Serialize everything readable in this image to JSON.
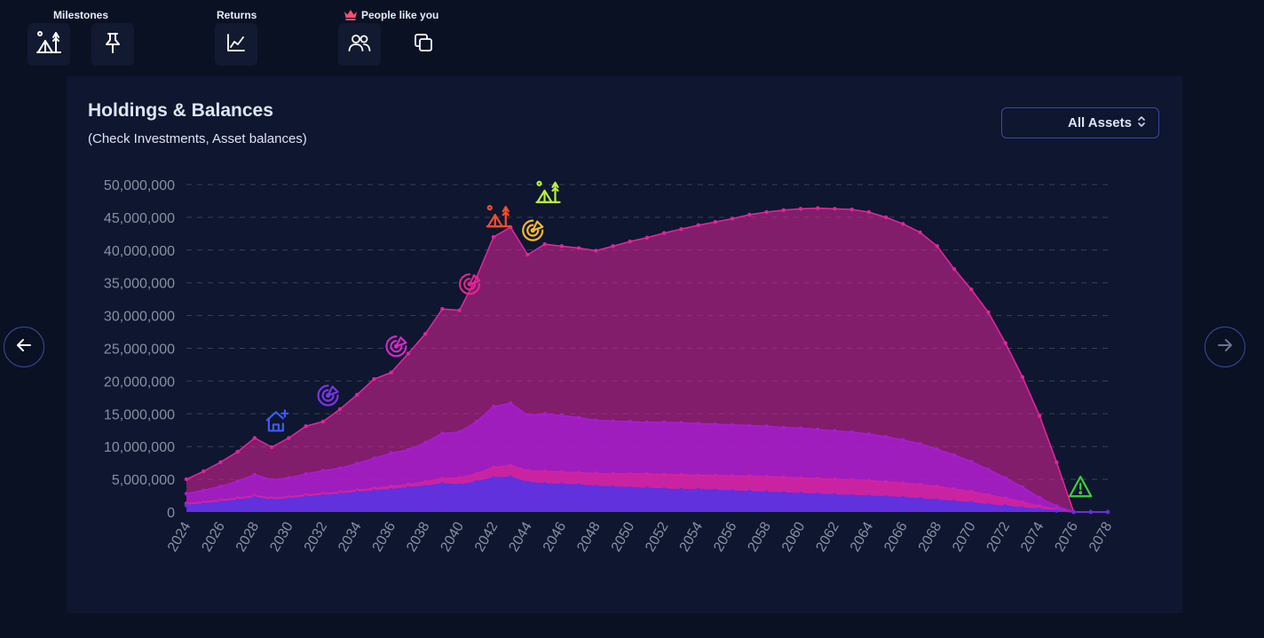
{
  "toolbar": {
    "groups": [
      {
        "label": "Milestones"
      },
      {
        "label": "Returns"
      },
      {
        "label": "People like you"
      }
    ],
    "buttons": [
      {
        "name": "milestone-camp-button",
        "icon": "camp-icon"
      },
      {
        "name": "milestone-pin-button",
        "icon": "pin-icon"
      },
      {
        "name": "returns-chart-button",
        "icon": "line-chart-icon"
      },
      {
        "name": "people-button",
        "icon": "users-icon"
      },
      {
        "name": "copy-button",
        "icon": "copy-icon"
      }
    ]
  },
  "card": {
    "title": "Holdings & Balances",
    "subtitle": "(Check Investments, Asset balances)",
    "asset_filter": {
      "selected": "All Assets"
    }
  },
  "colors": {
    "total": "#e0259a",
    "investments": "#a61ed1",
    "savings": "#d0249e",
    "cash": "#5b33e0",
    "gridline": "#3a4155",
    "ticklabel": "#8a90a0"
  },
  "chart_data": {
    "type": "area",
    "title": "",
    "xlabel": "",
    "ylabel": "",
    "ylim": [
      0,
      50000000
    ],
    "yticks": [
      0,
      5000000,
      10000000,
      15000000,
      20000000,
      25000000,
      30000000,
      35000000,
      40000000,
      45000000,
      50000000
    ],
    "ytick_labels": [
      "0",
      "5,000,000",
      "10,000,000",
      "15,000,000",
      "20,000,000",
      "25,000,000",
      "30,000,000",
      "35,000,000",
      "40,000,000",
      "45,000,000",
      "50,000,000"
    ],
    "xlim": [
      2024,
      2078
    ],
    "xtick_labels": [
      "2024",
      "2026",
      "2028",
      "2030",
      "2032",
      "2034",
      "2036",
      "2038",
      "2040",
      "2042",
      "2044",
      "2046",
      "2048",
      "2050",
      "2052",
      "2054",
      "2056",
      "2058",
      "2060",
      "2062",
      "2064",
      "2066",
      "2068",
      "2070",
      "2072",
      "2074",
      "2076",
      "2078"
    ],
    "grid": "horizontal-dashed",
    "series": [
      {
        "color": "#e0259a",
        "x": [
          2024,
          2025,
          2026,
          2027,
          2028,
          2029,
          2030,
          2031,
          2032,
          2033,
          2034,
          2035,
          2036,
          2037,
          2038,
          2039,
          2040,
          2041,
          2042,
          2043,
          2044,
          2045,
          2046,
          2047,
          2048,
          2049,
          2050,
          2051,
          2052,
          2053,
          2054,
          2055,
          2056,
          2057,
          2058,
          2059,
          2060,
          2061,
          2062,
          2063,
          2064,
          2065,
          2066,
          2067,
          2068,
          2069,
          2070,
          2071,
          2072,
          2073,
          2074,
          2075,
          2076,
          2077,
          2078
        ],
        "values": [
          5000000,
          6200000,
          7600000,
          9200000,
          11300000,
          9900000,
          11300000,
          13100000,
          13800000,
          15700000,
          17900000,
          20300000,
          21300000,
          24200000,
          27200000,
          31000000,
          30800000,
          35800000,
          42000000,
          43500000,
          39300000,
          40900000,
          40600000,
          40300000,
          39900000,
          40600000,
          41300000,
          41900000,
          42600000,
          43200000,
          43800000,
          44300000,
          44800000,
          45400000,
          45800000,
          46100000,
          46300000,
          46400000,
          46300000,
          46200000,
          45800000,
          45000000,
          44000000,
          42700000,
          40600000,
          37100000,
          34000000,
          30500000,
          25800000,
          20600000,
          14700000,
          7600000,
          0,
          0,
          0
        ]
      },
      {
        "color": "#a61ed1",
        "x": [
          2024,
          2025,
          2026,
          2027,
          2028,
          2029,
          2030,
          2031,
          2032,
          2033,
          2034,
          2035,
          2036,
          2037,
          2038,
          2039,
          2040,
          2041,
          2042,
          2043,
          2044,
          2045,
          2046,
          2047,
          2048,
          2049,
          2050,
          2051,
          2052,
          2053,
          2054,
          2055,
          2056,
          2057,
          2058,
          2059,
          2060,
          2061,
          2062,
          2063,
          2064,
          2065,
          2066,
          2067,
          2068,
          2069,
          2070,
          2071,
          2072,
          2073,
          2074,
          2075,
          2076,
          2077,
          2078
        ],
        "values": [
          2800000,
          3300000,
          3900000,
          4700000,
          5700000,
          4900000,
          5200000,
          5800000,
          6300000,
          6700000,
          7400000,
          8200000,
          9000000,
          9500000,
          10600000,
          12000000,
          12200000,
          13800000,
          16100000,
          16600000,
          14800000,
          15000000,
          14700000,
          14400000,
          14000000,
          13900000,
          13800000,
          13700000,
          13700000,
          13600000,
          13500000,
          13400000,
          13300000,
          13200000,
          13100000,
          12900000,
          12800000,
          12600000,
          12400000,
          12200000,
          11900000,
          11500000,
          11000000,
          10400000,
          9600000,
          8700000,
          7700000,
          6500000,
          5200000,
          3800000,
          2200000,
          900000,
          0,
          0,
          0
        ]
      },
      {
        "color": "#d0249e",
        "x": [
          2024,
          2025,
          2026,
          2027,
          2028,
          2029,
          2030,
          2031,
          2032,
          2033,
          2034,
          2035,
          2036,
          2037,
          2038,
          2039,
          2040,
          2041,
          2042,
          2043,
          2044,
          2045,
          2046,
          2047,
          2048,
          2049,
          2050,
          2051,
          2052,
          2053,
          2054,
          2055,
          2056,
          2057,
          2058,
          2059,
          2060,
          2061,
          2062,
          2063,
          2064,
          2065,
          2066,
          2067,
          2068,
          2069,
          2070,
          2071,
          2072,
          2073,
          2074,
          2075,
          2076,
          2077,
          2078
        ],
        "values": [
          1300000,
          1500000,
          1800000,
          2100000,
          2500000,
          2100000,
          2300000,
          2600000,
          2800000,
          3000000,
          3300000,
          3600000,
          3900000,
          4200000,
          4600000,
          5100000,
          5200000,
          5800000,
          6800000,
          7100000,
          6300000,
          6200000,
          6100000,
          6000000,
          5900000,
          5800000,
          5800000,
          5800000,
          5700000,
          5700000,
          5600000,
          5600000,
          5500000,
          5500000,
          5400000,
          5300000,
          5200000,
          5100000,
          5000000,
          4900000,
          4800000,
          4600000,
          4400000,
          4200000,
          3900000,
          3500000,
          3100000,
          2600000,
          2100000,
          1500000,
          900000,
          400000,
          0,
          0,
          0
        ]
      },
      {
        "color": "#5b33e0",
        "x": [
          2024,
          2025,
          2026,
          2027,
          2028,
          2029,
          2030,
          2031,
          2032,
          2033,
          2034,
          2035,
          2036,
          2037,
          2038,
          2039,
          2040,
          2041,
          2042,
          2043,
          2044,
          2045,
          2046,
          2047,
          2048,
          2049,
          2050,
          2051,
          2052,
          2053,
          2054,
          2055,
          2056,
          2057,
          2058,
          2059,
          2060,
          2061,
          2062,
          2063,
          2064,
          2065,
          2066,
          2067,
          2068,
          2069,
          2070,
          2071,
          2072,
          2073,
          2074,
          2075,
          2076,
          2077,
          2078
        ],
        "values": [
          1000000,
          1200000,
          1500000,
          1800000,
          2200000,
          1800000,
          2000000,
          2300000,
          2500000,
          2700000,
          3000000,
          3200000,
          3400000,
          3700000,
          3900000,
          4300000,
          4100000,
          4600000,
          5200000,
          5300000,
          4500000,
          4300000,
          4200000,
          4100000,
          3900000,
          3800000,
          3700000,
          3600000,
          3500000,
          3400000,
          3400000,
          3300000,
          3200000,
          3100000,
          3000000,
          2900000,
          2800000,
          2700000,
          2600000,
          2500000,
          2400000,
          2300000,
          2200000,
          2000000,
          1800000,
          1600000,
          1400000,
          1100000,
          900000,
          600000,
          400000,
          200000,
          0,
          0,
          0
        ]
      }
    ],
    "milestones": [
      {
        "x": 2029.3,
        "y": 13900000,
        "icon": "home-plus-icon",
        "color": "#3b5cf0"
      },
      {
        "x": 2032.3,
        "y": 17800000,
        "icon": "target-icon",
        "color": "#7b34e6"
      },
      {
        "x": 2036.3,
        "y": 25300000,
        "icon": "target-icon",
        "color": "#d22ac4"
      },
      {
        "x": 2040.6,
        "y": 34800000,
        "icon": "target-icon",
        "color": "#e5248f"
      },
      {
        "x": 2042.3,
        "y": 45100000,
        "icon": "camp-icon",
        "color": "#ff4b2b"
      },
      {
        "x": 2044.3,
        "y": 43000000,
        "icon": "target-icon",
        "color": "#f5b82e"
      },
      {
        "x": 2045.2,
        "y": 48800000,
        "icon": "camp-icon",
        "color": "#b8f03a"
      },
      {
        "x": 2076.4,
        "y": 3900000,
        "icon": "warning-icon",
        "color": "#3ad43a"
      }
    ]
  }
}
